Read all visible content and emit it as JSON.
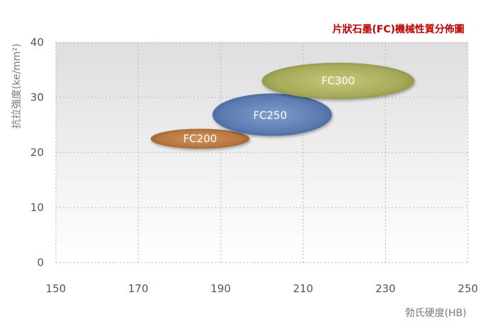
{
  "chart_data": {
    "type": "scatter",
    "title": "片狀石墨(FC)機械性質分佈圖",
    "xlabel": "勃氏硬度(HB)",
    "ylabel": "抗拉強度(ke/mm²)",
    "xlim": [
      150,
      250
    ],
    "ylim": [
      0,
      40
    ],
    "x_ticks": [
      "150",
      "170",
      "190",
      "210",
      "230",
      "250"
    ],
    "y_ticks": [
      "0",
      "10",
      "20",
      "30",
      "40"
    ],
    "grid": true,
    "series": [
      {
        "name": "FC200",
        "x_range": [
          173,
          197
        ],
        "y_range": [
          20.7,
          24.3
        ],
        "center": [
          185,
          22.5
        ],
        "color": "#b5763f"
      },
      {
        "name": "FC250",
        "x_range": [
          188,
          217
        ],
        "y_range": [
          23,
          30.7
        ],
        "center": [
          202,
          26.7
        ],
        "color": "#5b7bb0"
      },
      {
        "name": "FC300",
        "x_range": [
          200,
          237
        ],
        "y_range": [
          29.7,
          36.3
        ],
        "center": [
          218.5,
          33
        ],
        "color": "#a6ab5a"
      }
    ]
  }
}
